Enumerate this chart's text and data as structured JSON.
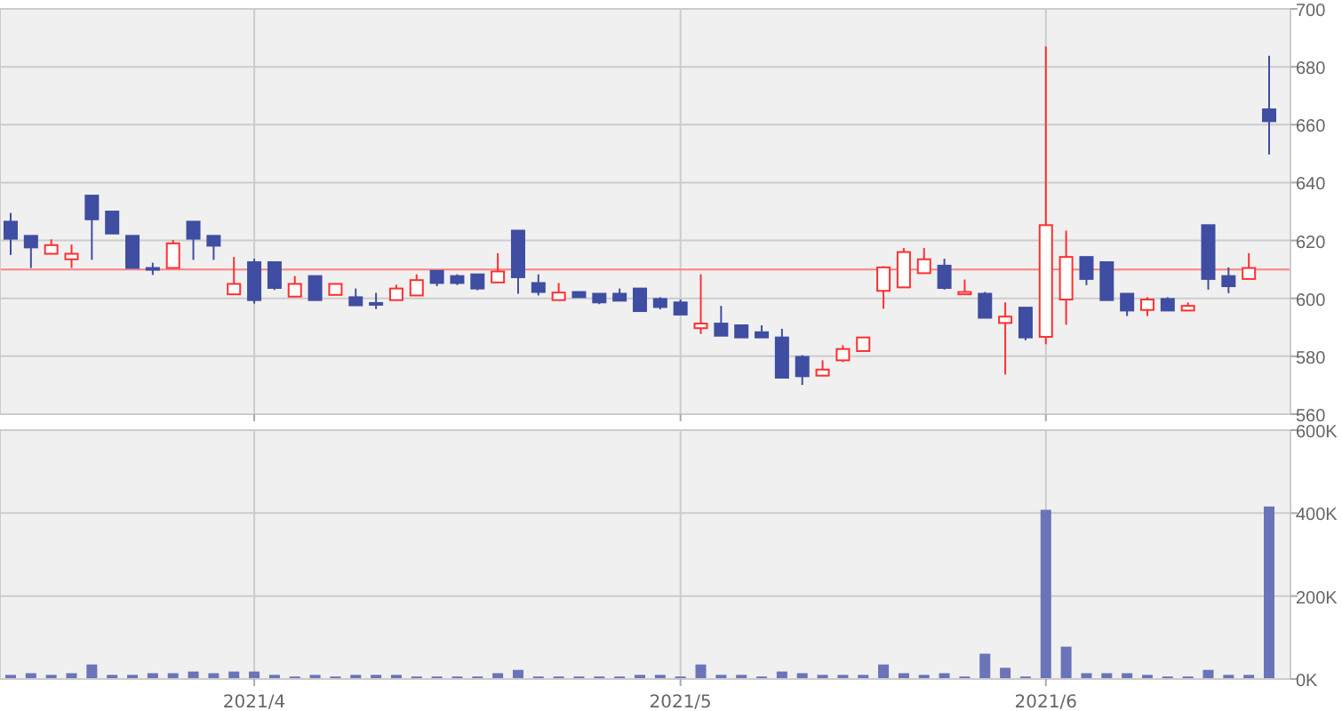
{
  "chart_data": [
    {
      "type": "candlestick",
      "categories": [
        null,
        null,
        null,
        null,
        null,
        null,
        null,
        null,
        null,
        null,
        null,
        null,
        "2021/4",
        null,
        null,
        null,
        null,
        null,
        null,
        null,
        null,
        null,
        null,
        null,
        null,
        null,
        null,
        null,
        null,
        null,
        null,
        null,
        null,
        "2021/5",
        null,
        null,
        null,
        null,
        null,
        null,
        null,
        null,
        null,
        null,
        null,
        null,
        null,
        null,
        null,
        null,
        null,
        "2021/6",
        null,
        null,
        null,
        null,
        null,
        null,
        null,
        null,
        null,
        null,
        null
      ],
      "ohlc": [
        [
          626.5,
          629.5,
          615,
          620.6
        ],
        [
          621.6,
          621.6,
          610.5,
          617.6
        ],
        [
          615.4,
          620.4,
          615.4,
          618.4
        ],
        [
          613.5,
          618.6,
          610.5,
          615.4
        ],
        [
          635.5,
          635.5,
          613.3,
          627.3
        ],
        [
          630,
          630,
          622.4,
          622.4
        ],
        [
          621.6,
          621.6,
          610.5,
          610.5
        ],
        [
          610.5,
          612.3,
          608.1,
          610.5
        ],
        [
          610.5,
          620.2,
          610.5,
          619
        ],
        [
          626.5,
          626.5,
          613.3,
          620.6
        ],
        [
          621.6,
          621.6,
          613.3,
          618.2
        ],
        [
          601.4,
          614.3,
          601.4,
          605
        ],
        [
          612.5,
          613.7,
          598.2,
          599.4
        ],
        [
          612.5,
          612.5,
          602.9,
          603.6
        ],
        [
          600.6,
          607.7,
          600.6,
          605
        ],
        [
          607.7,
          607.7,
          599.4,
          599.4
        ],
        [
          601.2,
          605,
          601.2,
          605
        ],
        [
          600.4,
          603.4,
          597.6,
          597.6
        ],
        [
          598.4,
          601.9,
          596.3,
          598.4
        ],
        [
          599.4,
          604.7,
          599.4,
          603.4
        ],
        [
          601,
          608.3,
          601,
          606.3
        ],
        [
          609.5,
          609.5,
          604.2,
          605.3
        ],
        [
          607.7,
          608.3,
          604.6,
          605.3
        ],
        [
          608.3,
          608.3,
          602.8,
          603.4
        ],
        [
          605.5,
          615.6,
          605.5,
          609.3
        ],
        [
          623.4,
          623.4,
          601.6,
          607.3
        ],
        [
          605.3,
          608.3,
          601,
          602.2
        ],
        [
          599.4,
          605.3,
          599.4,
          602
        ],
        [
          602.2,
          602.2,
          600.4,
          600.4
        ],
        [
          601.6,
          601.6,
          598,
          598.6
        ],
        [
          601.6,
          603.4,
          599.2,
          599.2
        ],
        [
          603.4,
          603.4,
          595.6,
          595.6
        ],
        [
          599.8,
          600.4,
          596.2,
          597
        ],
        [
          598.6,
          599.6,
          594.4,
          594.4
        ],
        [
          589.7,
          608.3,
          587.7,
          591.3
        ],
        [
          591.3,
          597.4,
          587.1,
          587.1
        ],
        [
          590.7,
          590.7,
          586.5,
          586.5
        ],
        [
          588.3,
          590.7,
          586.5,
          586.5
        ],
        [
          586.5,
          589.5,
          572.6,
          572.6
        ],
        [
          579.8,
          580.4,
          570.1,
          573.1
        ],
        [
          573.3,
          578.6,
          573.3,
          575.4
        ],
        [
          578.6,
          583.8,
          578,
          582.5
        ],
        [
          581.8,
          586.5,
          581.8,
          586.5
        ],
        [
          602.6,
          611.1,
          596.4,
          610.7
        ],
        [
          603.8,
          617.4,
          603.8,
          616
        ],
        [
          608.7,
          617.4,
          608.7,
          613.5
        ],
        [
          611.3,
          613.7,
          603,
          603.6
        ],
        [
          601.4,
          606.5,
          601.4,
          602.2
        ],
        [
          601.6,
          602.2,
          593.3,
          593.3
        ],
        [
          591.5,
          598.6,
          573.7,
          593.7
        ],
        [
          596.8,
          596.8,
          585.5,
          586.5
        ],
        [
          586.7,
          687,
          584.2,
          625.3
        ],
        [
          599.6,
          623.4,
          590.9,
          614.3
        ],
        [
          614.3,
          614.3,
          604.6,
          606.7
        ],
        [
          612.5,
          612.5,
          599.4,
          599.4
        ],
        [
          601.6,
          601.6,
          593.9,
          595.8
        ],
        [
          596,
          600.4,
          593.9,
          599.6
        ],
        [
          599.8,
          600.4,
          595.8,
          595.8
        ],
        [
          595.8,
          598.6,
          595.8,
          597.4
        ],
        [
          625.3,
          625.3,
          603,
          606.7
        ],
        [
          607.7,
          610.7,
          601.8,
          604.2
        ],
        [
          606.7,
          615.6,
          606.7,
          610.5
        ],
        [
          665.3,
          683.8,
          649.7,
          661.2
        ]
      ],
      "colors": [
        "#3f4ea2",
        "#3f4ea2",
        "#ff3030",
        "#ff3030",
        "#3f4ea2",
        "#3f4ea2",
        "#3f4ea2",
        "#3f4ea2",
        "#ff3030",
        "#3f4ea2",
        "#3f4ea2",
        "#ff3030",
        "#3f4ea2",
        "#3f4ea2",
        "#ff3030",
        "#3f4ea2",
        "#ff3030",
        "#3f4ea2",
        "#3f4ea2",
        "#ff3030",
        "#ff3030",
        "#3f4ea2",
        "#3f4ea2",
        "#3f4ea2",
        "#ff3030",
        "#3f4ea2",
        "#3f4ea2",
        "#ff3030",
        "#3f4ea2",
        "#3f4ea2",
        "#3f4ea2",
        "#3f4ea2",
        "#3f4ea2",
        "#3f4ea2",
        "#ff3030",
        "#3f4ea2",
        "#3f4ea2",
        "#3f4ea2",
        "#3f4ea2",
        "#3f4ea2",
        "#ff3030",
        "#ff3030",
        "#ff3030",
        "#ff3030",
        "#ff3030",
        "#ff3030",
        "#3f4ea2",
        "#ff3030",
        "#3f4ea2",
        "#ff3030",
        "#3f4ea2",
        "#ff3030",
        "#ff3030",
        "#3f4ea2",
        "#3f4ea2",
        "#3f4ea2",
        "#ff3030",
        "#3f4ea2",
        "#ff3030",
        "#3f4ea2",
        "#3f4ea2",
        "#ff3030",
        "#3f4ea2"
      ],
      "ylim": [
        560,
        700
      ],
      "yticks": [
        560,
        580,
        600,
        620,
        640,
        660,
        680,
        700
      ],
      "grid": true,
      "tick_labels": "y",
      "ref_lines": [
        {
          "axis": "y",
          "value": 610,
          "color": "#ff8080"
        }
      ]
    },
    {
      "type": "bar",
      "categories": [
        null,
        null,
        null,
        null,
        null,
        null,
        null,
        null,
        null,
        null,
        null,
        null,
        "2021/4",
        null,
        null,
        null,
        null,
        null,
        null,
        null,
        null,
        null,
        null,
        null,
        null,
        null,
        null,
        null,
        null,
        null,
        null,
        null,
        null,
        "2021/5",
        null,
        null,
        null,
        null,
        null,
        null,
        null,
        null,
        null,
        null,
        null,
        null,
        null,
        null,
        null,
        null,
        null,
        "2021/6",
        null,
        null,
        null,
        null,
        null,
        null,
        null,
        null,
        null,
        null,
        null
      ],
      "values": [
        10000,
        14000,
        10000,
        14000,
        35000,
        10000,
        10000,
        14000,
        14000,
        18000,
        14000,
        18000,
        18000,
        10000,
        6000,
        10000,
        6000,
        10000,
        10000,
        10000,
        6000,
        6000,
        6000,
        6000,
        14000,
        22000,
        6000,
        6000,
        6000,
        6000,
        6000,
        10000,
        10000,
        6000,
        35000,
        10000,
        10000,
        6000,
        18000,
        14000,
        10000,
        10000,
        10000,
        35000,
        14000,
        10000,
        14000,
        6000,
        61000,
        27000,
        6000,
        408000,
        78000,
        14000,
        14000,
        14000,
        10000,
        6000,
        6000,
        22000,
        10000,
        10000,
        416000
      ],
      "color": "#6b74b8",
      "ylim": [
        0,
        600000
      ],
      "yticks": [
        {
          "value": 0,
          "label": "0K"
        },
        {
          "value": 200000,
          "label": "200K"
        },
        {
          "value": 400000,
          "label": "400K"
        },
        {
          "value": 600000,
          "label": "600K"
        }
      ],
      "grid": true
    }
  ]
}
